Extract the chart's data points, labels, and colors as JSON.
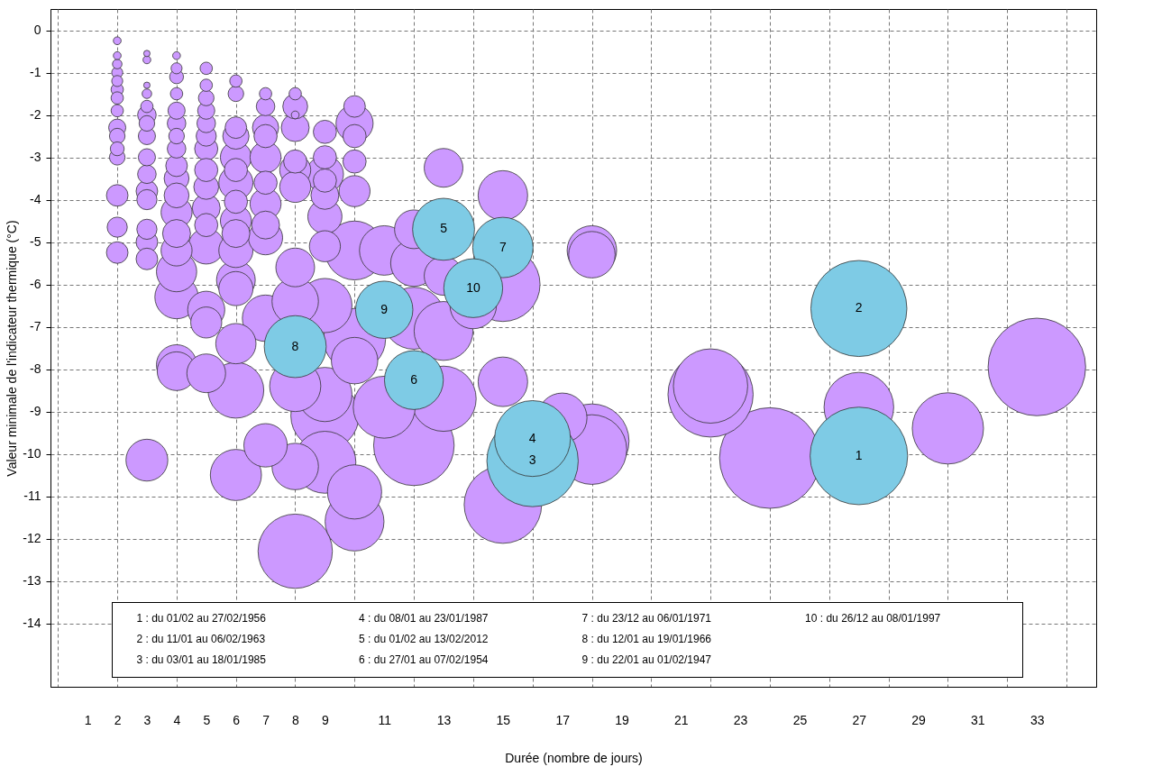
{
  "chart_data": {
    "type": "bubble",
    "xlabel": "Durée (nombre de jours)",
    "ylabel": "Valeur minimale de l'indicateur thermique (°C)",
    "xlim": [
      -0.25,
      35
    ],
    "ylim": [
      -15.5,
      0.5
    ],
    "xticks": [
      {
        "value": 0,
        "label": null
      },
      1,
      2,
      3,
      4,
      5,
      6,
      7,
      8,
      9,
      {
        "value": 10,
        "label": null
      },
      11,
      {
        "value": 12,
        "label": null
      },
      13,
      {
        "value": 14,
        "label": null
      },
      15,
      {
        "value": 16,
        "label": null
      },
      17,
      {
        "value": 18,
        "label": null
      },
      19,
      {
        "value": 20,
        "label": null
      },
      21,
      {
        "value": 22,
        "label": null
      },
      23,
      {
        "value": 24,
        "label": null
      },
      25,
      {
        "value": 26,
        "label": null
      },
      27,
      {
        "value": 28,
        "label": null
      },
      29,
      {
        "value": 30,
        "label": null
      },
      31,
      {
        "value": 32,
        "label": null
      },
      33,
      {
        "value": 34,
        "label": null
      }
    ],
    "yticks": [
      0,
      -1,
      -2,
      -3,
      -4,
      -5,
      -6,
      -7,
      -8,
      -9,
      -10,
      -11,
      -12,
      -13,
      -14
    ],
    "grid": true,
    "annotations": [
      "1 : du 01/02 au 27/02/1956",
      "2 : du 11/01 au 06/02/1963",
      "3 : du 03/01 au 18/01/1985",
      "4 : du 08/01 au 23/01/1987",
      "5 : du 01/02 au 13/02/2012",
      "6 : du 27/01 au 07/02/1954",
      "7 : du 23/12 au 06/01/1971",
      "8 : du 12/01 au 19/01/1966",
      "9 : du 22/01 au 01/02/1947",
      "10 : du 26/12 au 08/01/1997",
      {
        "text": "1",
        "x": 27,
        "y": -10.05
      },
      {
        "text": "2",
        "x": 27,
        "y": -6.57
      },
      {
        "text": "3",
        "x": 16,
        "y": -10.17
      },
      {
        "text": "4",
        "x": 16,
        "y": -9.64
      },
      {
        "text": "5",
        "x": 13,
        "y": -4.7
      },
      {
        "text": "6",
        "x": 12,
        "y": -8.26
      },
      {
        "text": "7",
        "x": 15,
        "y": -5.13
      },
      {
        "text": "8",
        "x": 8,
        "y": -7.47
      },
      {
        "text": "9",
        "x": 11,
        "y": -6.6
      },
      {
        "text": "10",
        "x": 14,
        "y": -6.09
      }
    ],
    "series": [
      {
        "color": "#cc99ff",
        "x": [
          2,
          2,
          2,
          2,
          2,
          2,
          2,
          2,
          2,
          2,
          2,
          2,
          2,
          2,
          2,
          3,
          3,
          3,
          3,
          3,
          3,
          3,
          3,
          3,
          3,
          3,
          3,
          3,
          3,
          3,
          3,
          4,
          4,
          4,
          4,
          4,
          4,
          4,
          4,
          4,
          4,
          4,
          4,
          4,
          4,
          4,
          4,
          4,
          4,
          5,
          5,
          5,
          5,
          5,
          5,
          5,
          5,
          5,
          5,
          5,
          5,
          5,
          5,
          5,
          6,
          6,
          6,
          6,
          6,
          6,
          6,
          6,
          6,
          6,
          6,
          6,
          6,
          6,
          6,
          6,
          7,
          7,
          7,
          7,
          7,
          7,
          7,
          7,
          7,
          7,
          7,
          8,
          8,
          8,
          8,
          8,
          8,
          8,
          8,
          8,
          8,
          8,
          8,
          9,
          9,
          9,
          9,
          9,
          9,
          9,
          9,
          9,
          9,
          9,
          10,
          10,
          10,
          10,
          10,
          10,
          10,
          10,
          10,
          10,
          11,
          11,
          12,
          12,
          12,
          12,
          13,
          13,
          13,
          13,
          14,
          15,
          15,
          15,
          15,
          17,
          18,
          18,
          18,
          18,
          22,
          22,
          24,
          27,
          30,
          33
        ],
        "values": [
          -0.25,
          -0.6,
          -0.8,
          -1.0,
          -1.2,
          -1.4,
          -1.6,
          -1.9,
          -2.3,
          -2.5,
          -2.8,
          -3.0,
          -3.9,
          -4.65,
          -5.25,
          -0.55,
          -0.7,
          -1.3,
          -1.5,
          -1.8,
          -2.0,
          -2.2,
          -2.5,
          -3.0,
          -3.4,
          -3.8,
          -4.0,
          -4.7,
          -5.0,
          -5.4,
          -10.15,
          -0.6,
          -0.9,
          -1.1,
          -1.5,
          -1.9,
          -2.2,
          -2.5,
          -2.8,
          -3.2,
          -3.5,
          -3.9,
          -4.3,
          -4.8,
          -5.2,
          -5.7,
          -6.3,
          -7.9,
          -8.05,
          -0.9,
          -1.3,
          -1.6,
          -1.9,
          -2.2,
          -2.5,
          -2.8,
          -3.3,
          -3.7,
          -4.2,
          -4.6,
          -5.1,
          -6.6,
          -6.9,
          -8.1,
          -1.2,
          -1.5,
          -2.3,
          -2.5,
          -3.0,
          -3.3,
          -3.6,
          -4.05,
          -4.5,
          -4.8,
          -5.2,
          -5.9,
          -6.1,
          -7.4,
          -8.5,
          -10.5,
          -1.5,
          -1.8,
          -2.3,
          -2.5,
          -3.0,
          -3.6,
          -4.1,
          -4.6,
          -4.9,
          -6.8,
          -9.8,
          -1.5,
          -1.8,
          -2.0,
          -2.3,
          -3.1,
          -3.3,
          -3.7,
          -5.6,
          -6.4,
          -8.4,
          -10.3,
          -12.3,
          -2.4,
          -3.0,
          -3.4,
          -3.55,
          -3.9,
          -4.4,
          -5.1,
          -6.5,
          -8.6,
          -9.1,
          -10.2,
          -1.8,
          -2.2,
          -2.5,
          -3.1,
          -3.8,
          -5.2,
          -7.3,
          -7.8,
          -10.9,
          -11.6,
          -5.2,
          -8.9,
          -4.7,
          -5.5,
          -6.8,
          -9.8,
          -3.25,
          -5.8,
          -7.1,
          -8.7,
          -6.5,
          -3.9,
          -6.0,
          -8.3,
          -11.2,
          -9.15,
          -5.2,
          -5.3,
          -9.7,
          -9.9,
          -8.4,
          -8.6,
          -10.1,
          -8.9,
          -9.4,
          -7.95
        ],
        "sizes": [
          0.006,
          0.006,
          0.009,
          0.012,
          0.012,
          0.015,
          0.015,
          0.015,
          0.029,
          0.024,
          0.019,
          0.024,
          0.046,
          0.04,
          0.046,
          0.004,
          0.006,
          0.004,
          0.009,
          0.015,
          0.034,
          0.024,
          0.029,
          0.029,
          0.034,
          0.046,
          0.04,
          0.04,
          0.046,
          0.046,
          0.173,
          0.006,
          0.012,
          0.019,
          0.015,
          0.029,
          0.034,
          0.024,
          0.034,
          0.046,
          0.061,
          0.061,
          0.095,
          0.077,
          0.095,
          0.16,
          0.186,
          0.16,
          0.148,
          0.015,
          0.015,
          0.024,
          0.029,
          0.034,
          0.04,
          0.053,
          0.053,
          0.061,
          0.077,
          0.053,
          0.125,
          0.136,
          0.095,
          0.148,
          0.015,
          0.024,
          0.046,
          0.068,
          0.095,
          0.053,
          0.115,
          0.053,
          0.095,
          0.077,
          0.115,
          0.148,
          0.115,
          0.16,
          0.307,
          0.258,
          0.015,
          0.034,
          0.068,
          0.053,
          0.095,
          0.053,
          0.095,
          0.077,
          0.115,
          0.213,
          0.186,
          0.015,
          0.061,
          0.006,
          0.077,
          0.053,
          0.095,
          0.095,
          0.148,
          0.213,
          0.258,
          0.213,
          0.545,
          0.053,
          0.053,
          0.136,
          0.053,
          0.077,
          0.115,
          0.095,
          0.29,
          0.29,
          0.458,
          0.379,
          0.046,
          0.136,
          0.053,
          0.053,
          0.095,
          0.342,
          0.379,
          0.213,
          0.29,
          0.342,
          0.242,
          0.379,
          0.148,
          0.213,
          0.379,
          0.64,
          0.148,
          0.148,
          0.342,
          0.42,
          0.213,
          0.242,
          0.545,
          0.242,
          0.592,
          0.242,
          0.242,
          0.213,
          0.545,
          0.479,
          0.545,
          0.716,
          1,
          0.479,
          0.501,
          0.939
        ]
      },
      {
        "color": "#7ecbe5",
        "x": [
          27,
          27,
          16,
          16,
          13,
          12,
          15,
          8,
          11,
          14
        ],
        "values": [
          -10.05,
          -6.57,
          -10.17,
          -9.64,
          -4.7,
          -8.26,
          -5.13,
          -7.47,
          -6.6,
          -6.09
        ],
        "sizes": [
          0.939,
          0.91,
          0.824,
          0.568,
          0.379,
          0.342,
          0.36,
          0.379,
          0.324,
          0.342
        ]
      }
    ]
  }
}
